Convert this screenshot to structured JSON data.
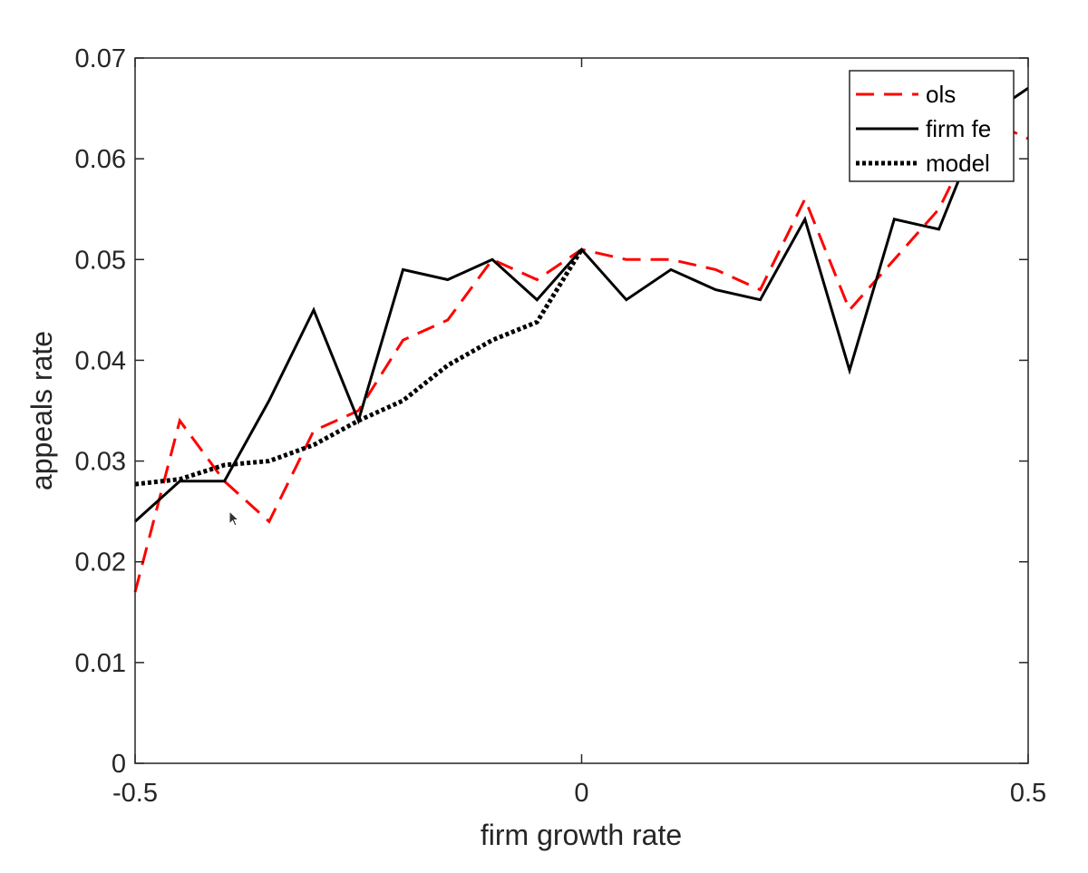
{
  "chart_data": {
    "type": "line",
    "title": "",
    "xlabel": "firm growth rate",
    "ylabel": "appeals rate",
    "xlim": [
      -0.5,
      0.5
    ],
    "ylim": [
      0,
      0.07
    ],
    "xticks": [
      -0.5,
      0,
      0.5
    ],
    "xtick_labels": [
      "-0.5",
      "0",
      "0.5"
    ],
    "yticks": [
      0,
      0.01,
      0.02,
      0.03,
      0.04,
      0.05,
      0.06,
      0.07
    ],
    "ytick_labels": [
      "0",
      "0.01",
      "0.02",
      "0.03",
      "0.04",
      "0.05",
      "0.06",
      "0.07"
    ],
    "grid": false,
    "legend_position": "top-right",
    "series": [
      {
        "name": "ols",
        "style": "dashed",
        "color": "#ff0000",
        "x": [
          -0.5,
          -0.45,
          -0.4,
          -0.35,
          -0.3,
          -0.25,
          -0.2,
          -0.15,
          -0.1,
          -0.05,
          0,
          0.05,
          0.1,
          0.15,
          0.2,
          0.25,
          0.3,
          0.35,
          0.4,
          0.45,
          0.5
        ],
        "y": [
          0.017,
          0.034,
          0.028,
          0.024,
          0.033,
          0.035,
          0.042,
          0.044,
          0.05,
          0.048,
          0.051,
          0.05,
          0.05,
          0.049,
          0.047,
          0.056,
          0.045,
          0.05,
          0.055,
          0.064,
          0.062
        ]
      },
      {
        "name": "firm fe",
        "style": "solid",
        "color": "#000000",
        "x": [
          -0.5,
          -0.45,
          -0.4,
          -0.35,
          -0.3,
          -0.25,
          -0.2,
          -0.15,
          -0.1,
          -0.05,
          0,
          0.05,
          0.1,
          0.15,
          0.2,
          0.25,
          0.3,
          0.35,
          0.4,
          0.45,
          0.5
        ],
        "y": [
          0.024,
          0.028,
          0.028,
          0.036,
          0.045,
          0.034,
          0.049,
          0.048,
          0.05,
          0.046,
          0.051,
          0.046,
          0.049,
          0.047,
          0.046,
          0.054,
          0.039,
          0.054,
          0.053,
          0.064,
          0.067
        ]
      },
      {
        "name": "model",
        "style": "dotted",
        "color": "#000000",
        "x": [
          -0.5,
          -0.45,
          -0.4,
          -0.35,
          -0.3,
          -0.25,
          -0.2,
          -0.15,
          -0.1,
          -0.05,
          0
        ],
        "y": [
          0.0277,
          0.0282,
          0.0296,
          0.03,
          0.0316,
          0.034,
          0.036,
          0.0395,
          0.042,
          0.0438,
          0.051
        ]
      }
    ]
  }
}
